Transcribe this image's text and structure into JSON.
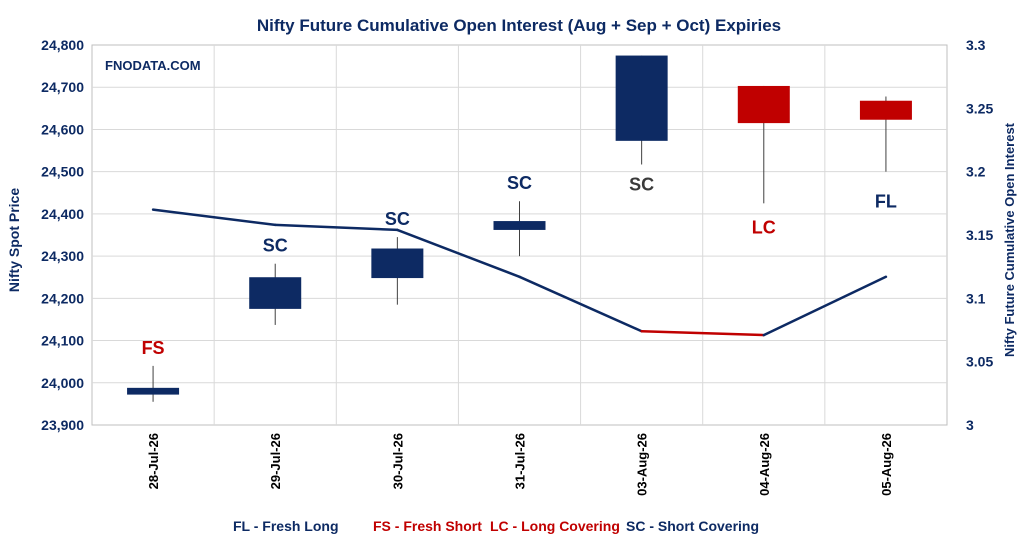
{
  "chart_data": {
    "type": "candlestick+line",
    "title": "Nifty Future Cumulative Open Interest (Aug + Sep + Oct) Expiries",
    "watermark": "FNODATA.COM",
    "ylabel": "Nifty Spot Price",
    "y2label": "Nifty Future Cumulative Open Interest",
    "ylim": [
      23900,
      24800
    ],
    "y2lim": [
      3.0,
      3.3
    ],
    "y_ticks": [
      "23,900",
      "24,000",
      "24,100",
      "24,200",
      "24,300",
      "24,400",
      "24,500",
      "24,600",
      "24,700",
      "24,800"
    ],
    "y2_ticks": [
      "3",
      "3.05",
      "3.1",
      "3.15",
      "3.2",
      "3.25",
      "3.3"
    ],
    "categories": [
      "28-Jul-26",
      "29-Jul-26",
      "30-Jul-26",
      "31-Jul-26",
      "03-Aug-26",
      "04-Aug-26",
      "05-Aug-26"
    ],
    "candles": [
      {
        "open": 23972,
        "close": 23988,
        "high": 24040,
        "low": 23955,
        "label": "FS",
        "direction": "up"
      },
      {
        "open": 24175,
        "close": 24250,
        "high": 24282,
        "low": 24137,
        "label": "SC",
        "direction": "up"
      },
      {
        "open": 24248,
        "close": 24318,
        "high": 24345,
        "low": 24185,
        "label": "SC",
        "direction": "up"
      },
      {
        "open": 24362,
        "close": 24383,
        "high": 24430,
        "low": 24300,
        "label": "SC",
        "direction": "up"
      },
      {
        "open": 24573,
        "close": 24775,
        "high": 24775,
        "low": 24517,
        "label": "SC",
        "direction": "up"
      },
      {
        "open": 24703,
        "close": 24615,
        "high": 24703,
        "low": 24425,
        "label": "LC",
        "direction": "down"
      },
      {
        "open": 24668,
        "close": 24623,
        "high": 24678,
        "low": 24500,
        "label": "FL",
        "direction": "down"
      }
    ],
    "open_interest": [
      3.17,
      3.158,
      3.154,
      3.117,
      3.074,
      3.071,
      3.117
    ],
    "grid": true,
    "legend": [
      {
        "label": "FL - Fresh Long",
        "color": "#0D2A63"
      },
      {
        "label": "FS - Fresh Short",
        "color": "#C00000"
      },
      {
        "label": "LC - Long Covering",
        "color": "#C00000"
      },
      {
        "label": "SC - Short Covering",
        "color": "#0D2A63"
      }
    ],
    "colors": {
      "up": "#0D2A63",
      "down": "#C00000",
      "label_SC": "#3A3A3A",
      "title": "#0D2A63"
    }
  }
}
